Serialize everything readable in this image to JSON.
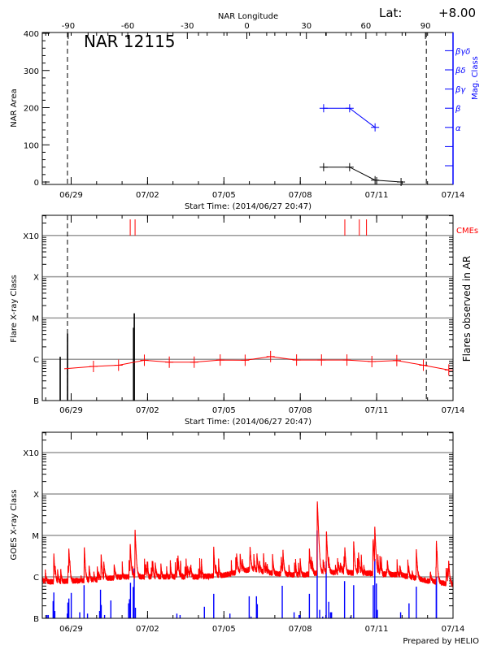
{
  "header": {
    "lat_label": "Lat:",
    "lat_value": "+8.00",
    "footer": "Prepared by HELIO"
  },
  "colors": {
    "axes": "#000000",
    "grid": "#999999",
    "mag_class": "#0000ff",
    "background_flux": "#ff0000",
    "cme": "#ff0000",
    "goes_flux": "#ff0000",
    "goes_events": "#0000ff"
  },
  "chart_data": [
    {
      "type": "line",
      "title": "NAR 12115",
      "top_axis_label": "NAR Longitude",
      "top_axis_ticks": [
        -90,
        -60,
        -30,
        0,
        30,
        60,
        90
      ],
      "xlabel": "Start Time: (2014/06/27 20:47)",
      "xlim": [
        "2014-06-27 20:47",
        "2014-07-14 00:00"
      ],
      "x_ticks": [
        {
          "t": "2014-06-29 00:00",
          "label": "06/29"
        },
        {
          "t": "2014-07-02 00:00",
          "label": "07/02"
        },
        {
          "t": "2014-07-05 00:00",
          "label": "07/05"
        },
        {
          "t": "2014-07-08 00:00",
          "label": "07/08"
        },
        {
          "t": "2014-07-11 00:00",
          "label": "07/11"
        },
        {
          "t": "2014-07-14 00:00",
          "label": "07/14"
        }
      ],
      "ylabel": "NAR Area",
      "ylim": [
        0,
        400
      ],
      "y_ticks": [
        "0",
        "100",
        "200",
        "300",
        "400"
      ],
      "y2label": "Mag. Class",
      "y2_ticks": [
        "",
        "",
        "α",
        "β",
        "βγ",
        "βδ",
        "βγδ"
      ],
      "limb_lines": [
        "2014-06-28 20:30",
        "2014-07-12 22:50"
      ],
      "series": [
        {
          "kind": "area",
          "points": [
            {
              "t": "2014-07-08 22:00",
              "v": 40
            },
            {
              "t": "2014-07-09 22:30",
              "v": 40
            },
            {
              "t": "2014-07-10 22:30",
              "v": 5
            },
            {
              "t": "2014-07-11 23:00",
              "v": 0
            }
          ]
        },
        {
          "kind": "mag_class",
          "points": [
            {
              "t": "2014-07-08 22:00",
              "v": "β"
            },
            {
              "t": "2014-07-09 22:30",
              "v": "β"
            },
            {
              "t": "2014-07-10 22:30",
              "v": "α"
            }
          ]
        }
      ]
    },
    {
      "type": "bar",
      "xlabel": "Start Time: (2014/06/27 20:47)",
      "ylabel": "Flare X-ray Class",
      "y2label": "Flares observed in AR",
      "cme_label": "CMEs",
      "yscale": "log",
      "ylim": [
        1e-07,
        0.0032
      ],
      "y_ticks": [
        {
          "v": 1e-07,
          "label": "B"
        },
        {
          "v": 1e-06,
          "label": "C"
        },
        {
          "v": 1e-05,
          "label": "M"
        },
        {
          "v": 0.0001,
          "label": "X"
        },
        {
          "v": 0.001,
          "label": "X10"
        }
      ],
      "grid": true,
      "flares": [
        {
          "t": "2014-06-28 13:40",
          "flux": 1.15e-06
        },
        {
          "t": "2014-06-28 20:35",
          "flux": 4.2e-06
        },
        {
          "t": "2014-07-01 10:50",
          "flux": 5.8e-06
        },
        {
          "t": "2014-07-01 11:30",
          "flux": 1.3e-05
        }
      ],
      "background": [
        {
          "t": "2014-06-28 17:30",
          "flux": 5.9e-07
        },
        {
          "t": "2014-06-29 21:00",
          "flux": 6.7e-07
        },
        {
          "t": "2014-06-30 20:40",
          "flux": 7.2e-07
        },
        {
          "t": "2014-07-01 21:00",
          "flux": 9.5e-07
        },
        {
          "t": "2014-07-02 20:30",
          "flux": 8.5e-07
        },
        {
          "t": "2014-07-03 20:00",
          "flux": 8.5e-07
        },
        {
          "t": "2014-07-04 20:30",
          "flux": 9.6e-07
        },
        {
          "t": "2014-07-05 20:00",
          "flux": 9.5e-07
        },
        {
          "t": "2014-07-06 20:00",
          "flux": 1.16e-06
        },
        {
          "t": "2014-07-07 20:30",
          "flux": 9.6e-07
        },
        {
          "t": "2014-07-08 20:00",
          "flux": 9.6e-07
        },
        {
          "t": "2014-07-09 20:00",
          "flux": 9.6e-07
        },
        {
          "t": "2014-07-10 19:30",
          "flux": 8.8e-07
        },
        {
          "t": "2014-07-11 19:00",
          "flux": 9.3e-07
        },
        {
          "t": "2014-07-12 20:00",
          "flux": 7.2e-07
        },
        {
          "t": "2014-07-13 20:00",
          "flux": 5.5e-07
        }
      ],
      "cmes": [
        "2014-07-01 07:40",
        "2014-07-01 12:15",
        "2014-07-09 18:00",
        "2014-07-10 07:40",
        "2014-07-10 14:25"
      ]
    },
    {
      "type": "line",
      "ylabel": "GOES X-ray Class",
      "yscale": "log",
      "ylim": [
        1e-07,
        0.0032
      ],
      "grid": true,
      "goes_background": [
        {
          "t": "2014-06-27 21:00",
          "flux": 8.5e-07
        },
        {
          "t": "2014-06-28 00:00",
          "flux": 7.5e-07
        },
        {
          "t": "2014-06-29 00:00",
          "flux": 8e-07
        },
        {
          "t": "2014-06-30 00:00",
          "flux": 8.5e-07
        },
        {
          "t": "2014-07-01 00:00",
          "flux": 1e-06
        },
        {
          "t": "2014-07-02 00:00",
          "flux": 1e-06
        },
        {
          "t": "2014-07-03 00:00",
          "flux": 1e-06
        },
        {
          "t": "2014-07-04 00:00",
          "flux": 1e-06
        },
        {
          "t": "2014-07-05 00:00",
          "flux": 1.1e-06
        },
        {
          "t": "2014-07-06 00:00",
          "flux": 1.5e-06
        },
        {
          "t": "2014-07-07 00:00",
          "flux": 1.2e-06
        },
        {
          "t": "2014-07-08 00:00",
          "flux": 1.1e-06
        },
        {
          "t": "2014-07-09 00:00",
          "flux": 1.3e-06
        },
        {
          "t": "2014-07-10 00:00",
          "flux": 1.25e-06
        },
        {
          "t": "2014-07-11 00:00",
          "flux": 1.2e-06
        },
        {
          "t": "2014-07-12 00:00",
          "flux": 1.1e-06
        },
        {
          "t": "2014-07-13 00:00",
          "flux": 8e-07
        },
        {
          "t": "2014-07-14 00:00",
          "flux": 6.5e-07
        }
      ],
      "goes_peaks": [
        {
          "t": "2014-06-28 07:40",
          "flux": 3.6e-06
        },
        {
          "t": "2014-06-28 21:50",
          "flux": 4.5e-06
        },
        {
          "t": "2014-06-29 12:25",
          "flux": 5.1e-06
        },
        {
          "t": "2014-06-30 04:15",
          "flux": 3.6e-06
        },
        {
          "t": "2014-07-01 07:40",
          "flux": 6.1e-06
        },
        {
          "t": "2014-07-01 12:15",
          "flux": 1.4e-05
        },
        {
          "t": "2014-07-03 03:50",
          "flux": 2.7e-06
        },
        {
          "t": "2014-07-04 14:25",
          "flux": 4.3e-06
        },
        {
          "t": "2014-07-06 00:40",
          "flux": 4.4e-06
        },
        {
          "t": "2014-07-06 07:10",
          "flux": 3.6e-06
        },
        {
          "t": "2014-07-07 07:40",
          "flux": 4.5e-06
        },
        {
          "t": "2014-07-08 08:35",
          "flux": 4.4e-06
        },
        {
          "t": "2014-07-08 16:05",
          "flux": 6.6e-05
        },
        {
          "t": "2014-07-09 00:40",
          "flux": 1.25e-05
        },
        {
          "t": "2014-07-09 18:00",
          "flux": 5.1e-06
        },
        {
          "t": "2014-07-10 02:20",
          "flux": 5.7e-06
        },
        {
          "t": "2014-07-10 20:35",
          "flux": 7.6e-06
        },
        {
          "t": "2014-07-10 22:15",
          "flux": 1.57e-05
        },
        {
          "t": "2014-07-11 10:05",
          "flux": 2.5e-06
        },
        {
          "t": "2014-07-12 13:25",
          "flux": 4.7e-06
        },
        {
          "t": "2014-07-13 08:20",
          "flux": 6.7e-06
        },
        {
          "t": "2014-07-13 19:55",
          "flux": 2e-06
        }
      ],
      "goes_events": [
        {
          "t": "2014-06-28 01:10",
          "flux": 1.2e-07
        },
        {
          "t": "2014-06-28 02:25",
          "flux": 1.2e-07
        },
        {
          "t": "2014-06-28 07:00",
          "flux": 2.6e-07
        },
        {
          "t": "2014-06-28 07:40",
          "flux": 4.2e-07
        },
        {
          "t": "2014-06-28 08:35",
          "flux": 1.5e-07
        },
        {
          "t": "2014-06-28 20:20",
          "flux": 1.3e-07
        },
        {
          "t": "2014-06-28 20:55",
          "flux": 2.4e-07
        },
        {
          "t": "2014-06-28 21:50",
          "flux": 3e-07
        },
        {
          "t": "2014-06-29 00:05",
          "flux": 4.1e-07
        },
        {
          "t": "2014-06-29 08:05",
          "flux": 1.4e-07
        },
        {
          "t": "2014-06-29 12:10",
          "flux": 6.3e-07
        },
        {
          "t": "2014-06-29 15:25",
          "flux": 1.3e-07
        },
        {
          "t": "2014-06-30 02:50",
          "flux": 1.5e-07
        },
        {
          "t": "2014-06-30 03:40",
          "flux": 4.9e-07
        },
        {
          "t": "2014-06-30 04:20",
          "flux": 2.1e-07
        },
        {
          "t": "2014-06-30 07:30",
          "flux": 1.2e-07
        },
        {
          "t": "2014-06-30 13:25",
          "flux": 2.7e-07
        },
        {
          "t": "2014-07-01 06:10",
          "flux": 2.3e-07
        },
        {
          "t": "2014-07-01 07:00",
          "flux": 2.9e-07
        },
        {
          "t": "2014-07-01 07:55",
          "flux": 7.2e-07
        },
        {
          "t": "2014-07-01 10:30",
          "flux": 5.7e-07
        },
        {
          "t": "2014-07-01 11:25",
          "flux": 1.6e-06
        },
        {
          "t": "2014-07-01 12:35",
          "flux": 1.8e-07
        },
        {
          "t": "2014-07-03 03:40",
          "flux": 1.3e-07
        },
        {
          "t": "2014-07-03 06:40",
          "flux": 1.2e-07
        },
        {
          "t": "2014-07-04 05:35",
          "flux": 1.9e-07
        },
        {
          "t": "2014-07-04 14:25",
          "flux": 3.9e-07
        },
        {
          "t": "2014-07-05 05:40",
          "flux": 1.3e-07
        },
        {
          "t": "2014-07-05 23:50",
          "flux": 3.4e-07
        },
        {
          "t": "2014-07-06 01:35",
          "flux": 1.1e-07
        },
        {
          "t": "2014-07-06 06:40",
          "flux": 3.4e-07
        },
        {
          "t": "2014-07-06 07:30",
          "flux": 2.2e-07
        },
        {
          "t": "2014-07-07 07:00",
          "flux": 6.1e-07
        },
        {
          "t": "2014-07-07 18:10",
          "flux": 1.4e-07
        },
        {
          "t": "2014-07-07 22:50",
          "flux": 1.2e-07
        },
        {
          "t": "2014-07-07 23:45",
          "flux": 1.2e-07
        },
        {
          "t": "2014-07-08 08:35",
          "flux": 3.9e-07
        },
        {
          "t": "2014-07-08 15:55",
          "flux": 1.33e-05
        },
        {
          "t": "2014-07-08 18:15",
          "flux": 1.6e-07
        },
        {
          "t": "2014-07-08 21:10",
          "flux": 1.1e-07
        },
        {
          "t": "2014-07-09 00:25",
          "flux": 2.4e-06
        },
        {
          "t": "2014-07-09 02:50",
          "flux": 2.5e-07
        },
        {
          "t": "2014-07-09 04:30",
          "flux": 1.4e-07
        },
        {
          "t": "2014-07-09 05:30",
          "flux": 1.4e-07
        },
        {
          "t": "2014-07-09 17:45",
          "flux": 7.9e-07
        },
        {
          "t": "2014-07-09 23:20",
          "flux": 1.1e-07
        },
        {
          "t": "2014-07-10 02:20",
          "flux": 6.3e-07
        },
        {
          "t": "2014-07-10 20:50",
          "flux": 6.3e-07
        },
        {
          "t": "2014-07-10 22:15",
          "flux": 2.7e-06
        },
        {
          "t": "2014-07-10 23:45",
          "flux": 6.9e-07
        },
        {
          "t": "2014-07-11 00:40",
          "flux": 1.6e-07
        },
        {
          "t": "2014-07-11 22:35",
          "flux": 1.4e-07
        },
        {
          "t": "2014-07-12 06:30",
          "flux": 2.3e-07
        },
        {
          "t": "2014-07-12 13:25",
          "flux": 5.8e-07
        },
        {
          "t": "2014-07-13 08:10",
          "flux": 7.9e-07
        },
        {
          "t": "2014-07-13 08:25",
          "flux": 1e-06
        }
      ]
    }
  ]
}
